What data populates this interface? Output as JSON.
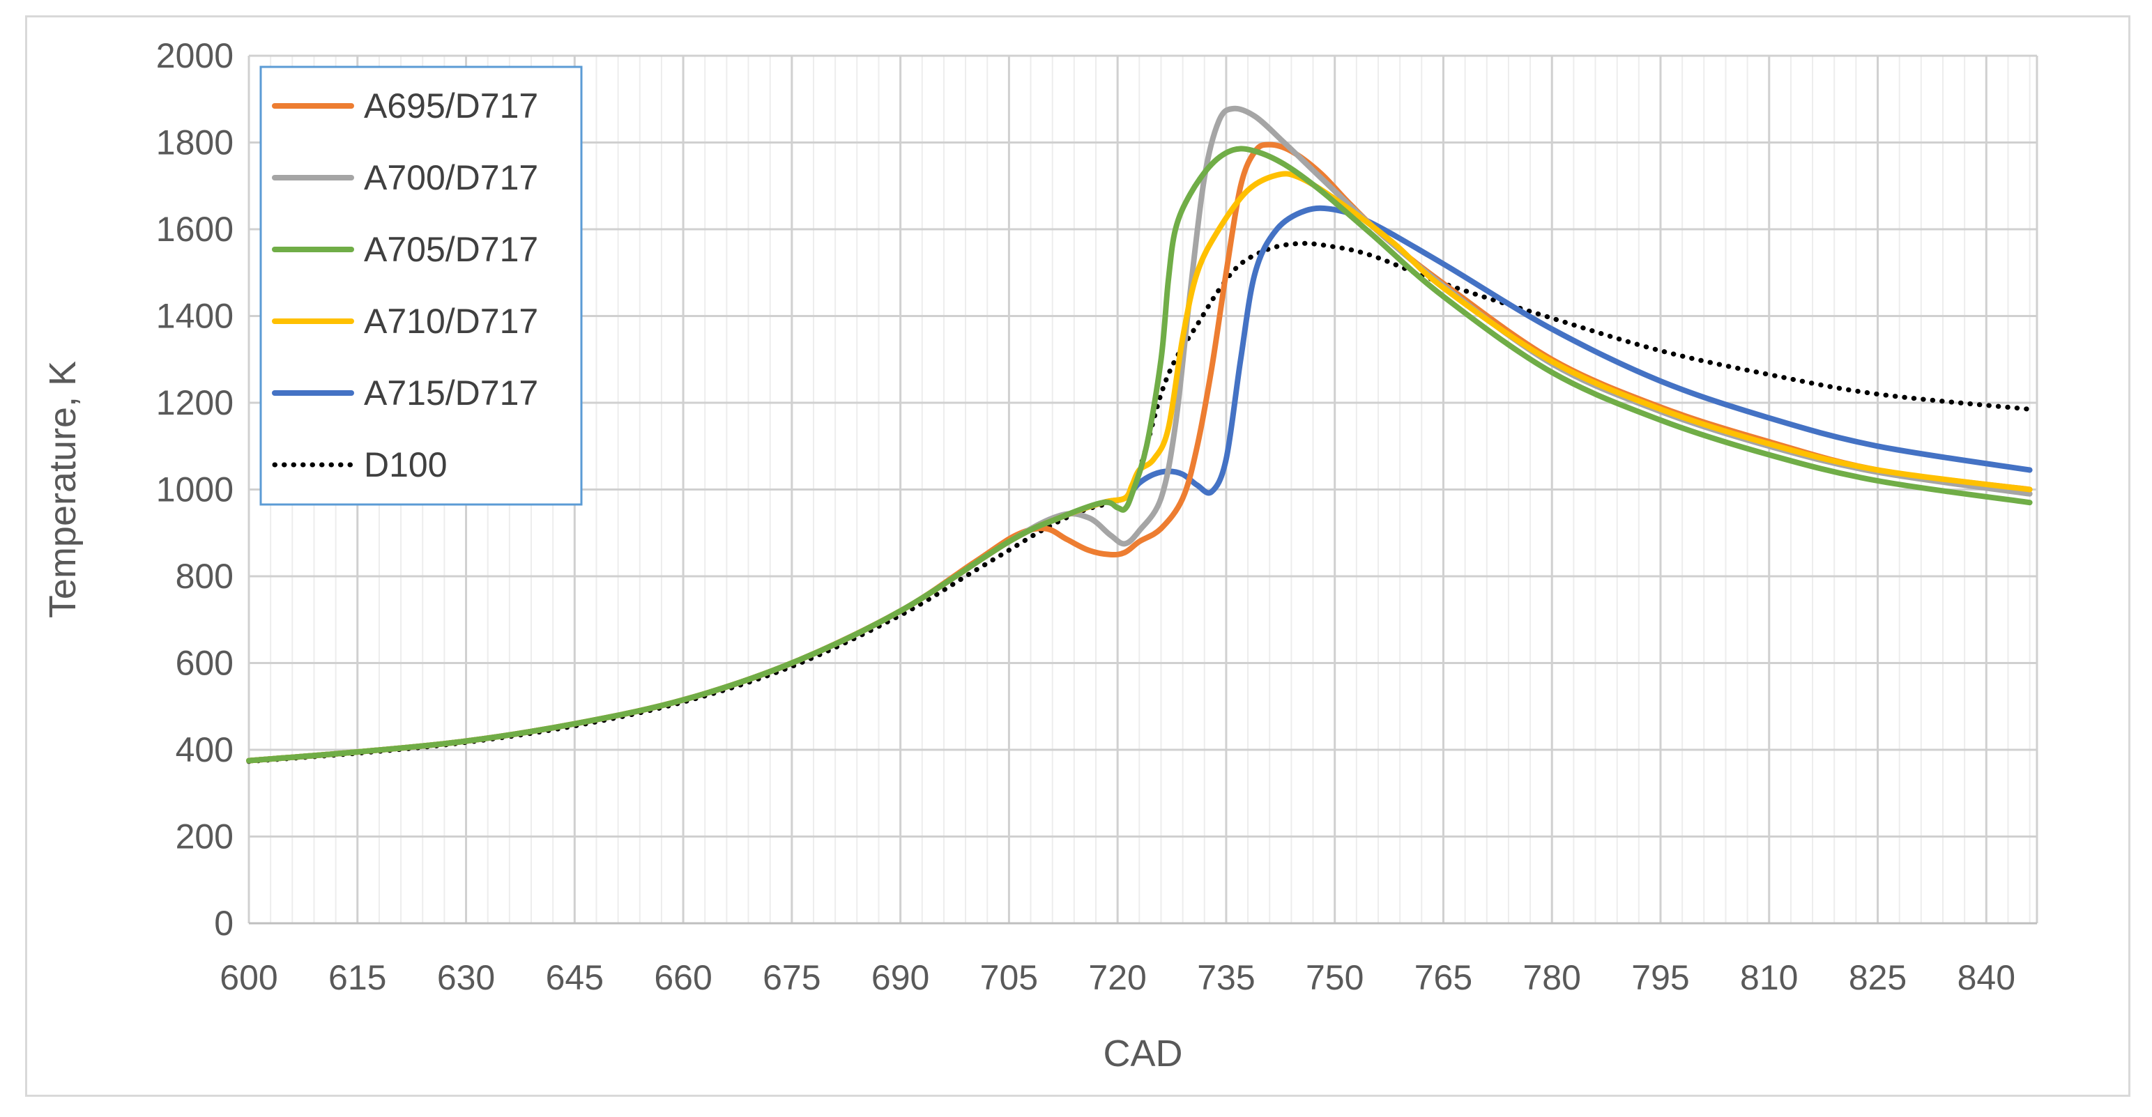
{
  "chart_data": {
    "type": "line",
    "title": "",
    "xlabel": "CAD",
    "ylabel": "Temperature, K",
    "xlim": [
      600,
      847
    ],
    "ylim": [
      0,
      2000
    ],
    "xticks": [
      600,
      615,
      630,
      645,
      660,
      675,
      690,
      705,
      720,
      735,
      750,
      765,
      780,
      795,
      810,
      825,
      840
    ],
    "yticks": [
      0,
      200,
      400,
      600,
      800,
      1000,
      1200,
      1400,
      1600,
      1800,
      2000
    ],
    "grid": true,
    "legend_position": "top-left",
    "series": [
      {
        "name": "A695/D717",
        "color": "#ED7D31",
        "dash": "solid",
        "points": [
          [
            600,
            375
          ],
          [
            615,
            395
          ],
          [
            630,
            420
          ],
          [
            645,
            460
          ],
          [
            660,
            515
          ],
          [
            675,
            600
          ],
          [
            690,
            720
          ],
          [
            700,
            830
          ],
          [
            706,
            895
          ],
          [
            710,
            910
          ],
          [
            713,
            885
          ],
          [
            716,
            860
          ],
          [
            719,
            850
          ],
          [
            721,
            855
          ],
          [
            723,
            880
          ],
          [
            726,
            910
          ],
          [
            729,
            980
          ],
          [
            731,
            1100
          ],
          [
            733,
            1280
          ],
          [
            735,
            1500
          ],
          [
            737,
            1700
          ],
          [
            739,
            1780
          ],
          [
            741,
            1795
          ],
          [
            744,
            1780
          ],
          [
            748,
            1730
          ],
          [
            752,
            1660
          ],
          [
            757,
            1580
          ],
          [
            765,
            1475
          ],
          [
            780,
            1300
          ],
          [
            795,
            1190
          ],
          [
            810,
            1110
          ],
          [
            825,
            1045
          ],
          [
            846,
            1000
          ]
        ]
      },
      {
        "name": "A700/D717",
        "color": "#A5A5A5",
        "dash": "solid",
        "points": [
          [
            600,
            375
          ],
          [
            615,
            395
          ],
          [
            630,
            420
          ],
          [
            645,
            460
          ],
          [
            660,
            515
          ],
          [
            675,
            600
          ],
          [
            690,
            720
          ],
          [
            705,
            880
          ],
          [
            712,
            940
          ],
          [
            716,
            935
          ],
          [
            719,
            895
          ],
          [
            721,
            875
          ],
          [
            723,
            905
          ],
          [
            726,
            980
          ],
          [
            728,
            1150
          ],
          [
            730,
            1450
          ],
          [
            732,
            1720
          ],
          [
            734,
            1850
          ],
          [
            736,
            1878
          ],
          [
            739,
            1860
          ],
          [
            743,
            1800
          ],
          [
            748,
            1720
          ],
          [
            755,
            1610
          ],
          [
            765,
            1470
          ],
          [
            780,
            1290
          ],
          [
            795,
            1180
          ],
          [
            810,
            1100
          ],
          [
            825,
            1040
          ],
          [
            846,
            990
          ]
        ]
      },
      {
        "name": "A705/D717",
        "color": "#70AD47",
        "dash": "solid",
        "points": [
          [
            600,
            375
          ],
          [
            615,
            395
          ],
          [
            630,
            420
          ],
          [
            645,
            460
          ],
          [
            660,
            515
          ],
          [
            675,
            600
          ],
          [
            690,
            720
          ],
          [
            705,
            880
          ],
          [
            712,
            935
          ],
          [
            718,
            970
          ],
          [
            720,
            958
          ],
          [
            721,
            955
          ],
          [
            722,
            990
          ],
          [
            724,
            1100
          ],
          [
            726,
            1300
          ],
          [
            727,
            1480
          ],
          [
            728,
            1600
          ],
          [
            730,
            1680
          ],
          [
            733,
            1750
          ],
          [
            736,
            1783
          ],
          [
            739,
            1780
          ],
          [
            743,
            1750
          ],
          [
            748,
            1690
          ],
          [
            755,
            1590
          ],
          [
            765,
            1445
          ],
          [
            780,
            1270
          ],
          [
            795,
            1160
          ],
          [
            810,
            1080
          ],
          [
            825,
            1020
          ],
          [
            846,
            970
          ]
        ]
      },
      {
        "name": "A710/D717",
        "color": "#FFC000",
        "dash": "solid",
        "points": [
          [
            600,
            375
          ],
          [
            615,
            395
          ],
          [
            630,
            420
          ],
          [
            645,
            460
          ],
          [
            660,
            515
          ],
          [
            675,
            600
          ],
          [
            690,
            720
          ],
          [
            705,
            880
          ],
          [
            712,
            935
          ],
          [
            718,
            970
          ],
          [
            721,
            980
          ],
          [
            722,
            1010
          ],
          [
            723,
            1045
          ],
          [
            725,
            1070
          ],
          [
            727,
            1140
          ],
          [
            729,
            1350
          ],
          [
            731,
            1500
          ],
          [
            734,
            1600
          ],
          [
            738,
            1690
          ],
          [
            742,
            1725
          ],
          [
            745,
            1720
          ],
          [
            750,
            1670
          ],
          [
            758,
            1570
          ],
          [
            765,
            1465
          ],
          [
            780,
            1295
          ],
          [
            795,
            1185
          ],
          [
            810,
            1105
          ],
          [
            825,
            1045
          ],
          [
            846,
            1000
          ]
        ]
      },
      {
        "name": "A715/D717",
        "color": "#4472C4",
        "dash": "solid",
        "points": [
          [
            600,
            375
          ],
          [
            615,
            395
          ],
          [
            630,
            420
          ],
          [
            645,
            460
          ],
          [
            660,
            515
          ],
          [
            675,
            600
          ],
          [
            690,
            720
          ],
          [
            705,
            880
          ],
          [
            712,
            935
          ],
          [
            718,
            970
          ],
          [
            721,
            980
          ],
          [
            723,
            1015
          ],
          [
            725,
            1035
          ],
          [
            727,
            1042
          ],
          [
            729,
            1035
          ],
          [
            731,
            1010
          ],
          [
            733,
            995
          ],
          [
            735,
            1070
          ],
          [
            737,
            1300
          ],
          [
            739,
            1500
          ],
          [
            742,
            1600
          ],
          [
            746,
            1643
          ],
          [
            750,
            1645
          ],
          [
            755,
            1615
          ],
          [
            765,
            1520
          ],
          [
            780,
            1370
          ],
          [
            795,
            1250
          ],
          [
            810,
            1165
          ],
          [
            825,
            1100
          ],
          [
            846,
            1045
          ]
        ]
      },
      {
        "name": "D100",
        "color": "#000000",
        "dash": "dotted",
        "points": [
          [
            600,
            373
          ],
          [
            615,
            392
          ],
          [
            630,
            417
          ],
          [
            645,
            455
          ],
          [
            660,
            510
          ],
          [
            675,
            592
          ],
          [
            690,
            710
          ],
          [
            700,
            810
          ],
          [
            705,
            860
          ],
          [
            710,
            910
          ],
          [
            715,
            950
          ],
          [
            720,
            975
          ],
          [
            722,
            1000
          ],
          [
            724,
            1100
          ],
          [
            726,
            1220
          ],
          [
            728,
            1300
          ],
          [
            731,
            1380
          ],
          [
            734,
            1460
          ],
          [
            737,
            1520
          ],
          [
            741,
            1555
          ],
          [
            745,
            1567
          ],
          [
            749,
            1562
          ],
          [
            755,
            1540
          ],
          [
            765,
            1475
          ],
          [
            780,
            1395
          ],
          [
            795,
            1320
          ],
          [
            810,
            1265
          ],
          [
            825,
            1220
          ],
          [
            846,
            1185
          ]
        ]
      }
    ]
  }
}
